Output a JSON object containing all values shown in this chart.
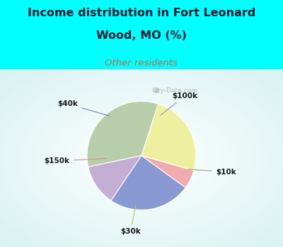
{
  "title_line1": "Income distribution in Fort Leonard",
  "title_line2": "Wood, MO (%)",
  "subtitle": "Other residents",
  "labels": [
    "$10k",
    "$100k",
    "$40k",
    "$150k",
    "$30k"
  ],
  "sizes": [
    30,
    11,
    22,
    5,
    22
  ],
  "colors": [
    "#b8ceaa",
    "#c4aed4",
    "#8899d4",
    "#f0aab0",
    "#eef0a0"
  ],
  "background_top": "#00ffff",
  "title_color": "#1a1a2e",
  "subtitle_color": "#cc6644",
  "label_color": "#1a1a1a",
  "startangle": 72,
  "watermark": "City-Data.com"
}
